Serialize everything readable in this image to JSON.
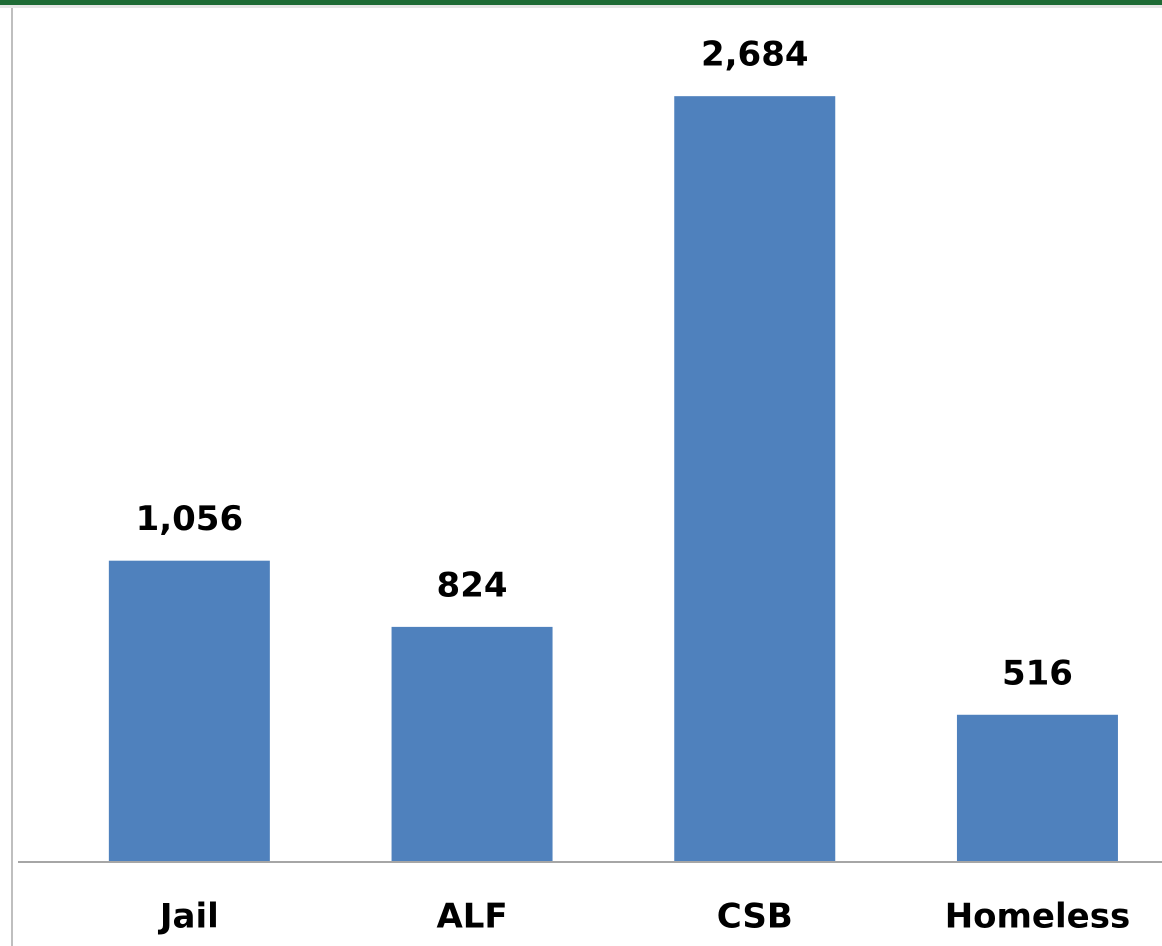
{
  "chart_data": {
    "type": "bar",
    "categories": [
      "Jail",
      "ALF",
      "CSB",
      "Homeless"
    ],
    "values": [
      1056,
      824,
      2684,
      516
    ],
    "value_labels": [
      "1,056",
      "824",
      "2,684",
      "516"
    ],
    "color": "#4f81bd",
    "ylim": [
      0,
      3000
    ]
  }
}
